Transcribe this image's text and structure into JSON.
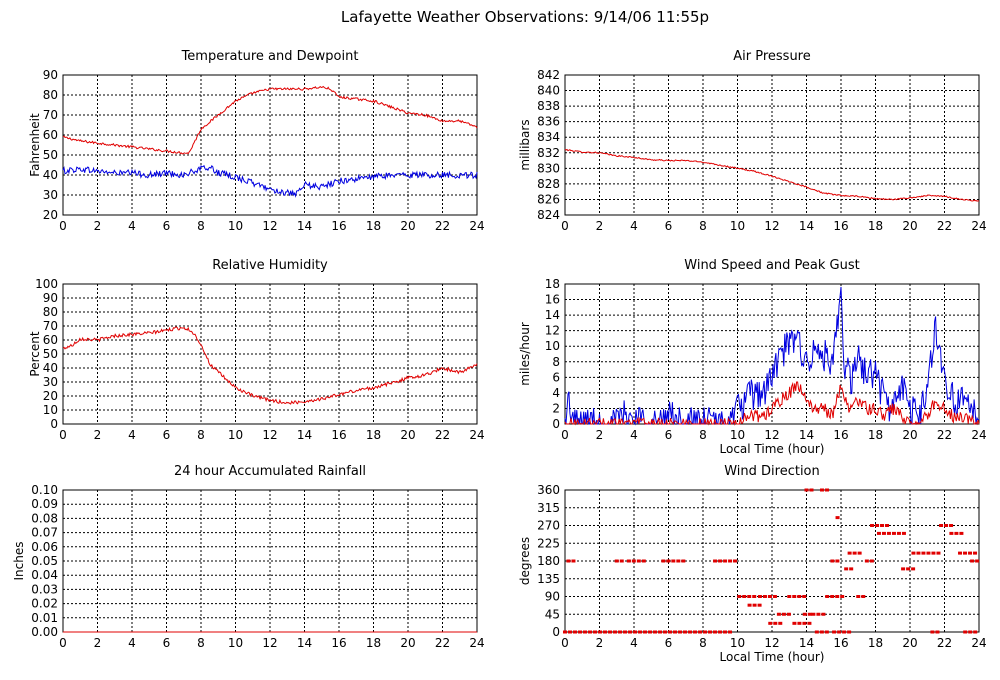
{
  "page": {
    "title": "Lafayette Weather Observations: 9/14/06 11:55p"
  },
  "colors": {
    "red": "#e00000",
    "blue": "#0000e0"
  },
  "chart_data": [
    {
      "id": "temp",
      "type": "line",
      "title": "Temperature and Dewpoint",
      "xlabel": "",
      "ylabel": "Fahrenheit",
      "xlim": [
        0,
        24
      ],
      "ylim": [
        20,
        90
      ],
      "xticks": [
        0,
        2,
        4,
        6,
        8,
        10,
        12,
        14,
        16,
        18,
        20,
        22,
        24
      ],
      "yticks": [
        20,
        30,
        40,
        50,
        60,
        70,
        80,
        90
      ],
      "grid": true,
      "series": [
        {
          "color": "red",
          "noise": 0.6,
          "x": [
            0,
            1,
            2,
            3,
            4,
            5,
            6,
            7,
            7.3,
            8,
            9,
            10,
            11,
            12,
            13,
            14,
            15,
            15.5,
            16,
            17,
            18,
            19,
            20,
            21,
            22,
            23,
            24
          ],
          "y": [
            59,
            57,
            56,
            55,
            54,
            53,
            52,
            51,
            51,
            63,
            70,
            77,
            81,
            83,
            83,
            83,
            84,
            83,
            79,
            78,
            77,
            74,
            71,
            70,
            67,
            67,
            64
          ]
        },
        {
          "color": "blue",
          "noise": 1.6,
          "x": [
            0,
            1,
            2,
            3,
            4,
            5,
            6,
            7,
            8,
            8.5,
            9,
            10,
            11,
            12,
            13,
            13.5,
            14,
            15,
            16,
            17,
            18,
            19,
            20,
            21,
            22,
            23,
            24
          ],
          "y": [
            42,
            43,
            42,
            41,
            41,
            40,
            41,
            40,
            43,
            44,
            41,
            39,
            36,
            33,
            31,
            30,
            35,
            34,
            37,
            38,
            39,
            40,
            40,
            40,
            40,
            40,
            40
          ]
        }
      ]
    },
    {
      "id": "pressure",
      "type": "line",
      "title": "Air Pressure",
      "xlabel": "",
      "ylabel": "millibars",
      "xlim": [
        0,
        24
      ],
      "ylim": [
        824,
        842
      ],
      "xticks": [
        0,
        2,
        4,
        6,
        8,
        10,
        12,
        14,
        16,
        18,
        20,
        22,
        24
      ],
      "yticks": [
        824,
        826,
        828,
        830,
        832,
        834,
        836,
        838,
        840,
        842
      ],
      "grid": true,
      "series": [
        {
          "color": "red",
          "noise": 0.08,
          "x": [
            0,
            1,
            2,
            3,
            4,
            5,
            6,
            7,
            8,
            9,
            10,
            11,
            12,
            13,
            14,
            15,
            16,
            17,
            18,
            19,
            20,
            21,
            22,
            23,
            24
          ],
          "y": [
            832.4,
            832.1,
            832.0,
            831.6,
            831.4,
            831.1,
            831.0,
            831.0,
            830.8,
            830.4,
            830.0,
            829.6,
            829.0,
            828.3,
            827.6,
            826.8,
            826.5,
            826.4,
            826.1,
            826.0,
            826.2,
            826.5,
            826.4,
            826.0,
            825.8
          ]
        }
      ]
    },
    {
      "id": "humidity",
      "type": "line",
      "title": "Relative Humidity",
      "xlabel": "",
      "ylabel": "Percent",
      "xlim": [
        0,
        24
      ],
      "ylim": [
        0,
        100
      ],
      "xticks": [
        0,
        2,
        4,
        6,
        8,
        10,
        12,
        14,
        16,
        18,
        20,
        22,
        24
      ],
      "yticks": [
        0,
        10,
        20,
        30,
        40,
        50,
        60,
        70,
        80,
        90,
        100
      ],
      "grid": true,
      "series": [
        {
          "color": "red",
          "noise": 1.2,
          "x": [
            0,
            0.5,
            1,
            2,
            3,
            4,
            5,
            6,
            7,
            7.5,
            8,
            8.5,
            9,
            10,
            11,
            12,
            13,
            14,
            15,
            16,
            17,
            18,
            19,
            20,
            21,
            22,
            23,
            24
          ],
          "y": [
            54,
            56,
            61,
            60,
            63,
            64,
            65,
            67,
            69,
            66,
            57,
            43,
            37,
            26,
            20,
            17,
            15,
            16,
            18,
            21,
            24,
            26,
            29,
            33,
            35,
            40,
            37,
            42
          ]
        }
      ]
    },
    {
      "id": "wind",
      "type": "line",
      "title": "Wind Speed and Peak Gust",
      "xlabel": "Local Time (hour)",
      "ylabel": "miles/hour",
      "xlim": [
        0,
        24
      ],
      "ylim": [
        0,
        18
      ],
      "xticks": [
        0,
        2,
        4,
        6,
        8,
        10,
        12,
        14,
        16,
        18,
        20,
        22,
        24
      ],
      "yticks": [
        0,
        2,
        4,
        6,
        8,
        10,
        12,
        14,
        16,
        18
      ],
      "grid": true,
      "series": [
        {
          "color": "blue",
          "noise": 2.2,
          "floor": 0,
          "x": [
            0,
            0.2,
            0.4,
            0.6,
            3,
            3.2,
            5.9,
            6.1,
            6.3,
            9.5,
            10,
            10.5,
            11,
            11.5,
            12,
            12.5,
            13,
            13.5,
            14,
            14.5,
            15,
            15.5,
            16,
            16.2,
            16.6,
            17,
            17.5,
            18,
            18.5,
            19,
            19.5,
            20,
            20.5,
            21,
            21.5,
            21.8,
            22.3,
            22.8,
            23.3,
            24
          ],
          "y": [
            0,
            3,
            1,
            0,
            0,
            1,
            0,
            3,
            0,
            0,
            2,
            3,
            4,
            4,
            6,
            9,
            10,
            11,
            8,
            9,
            9,
            7,
            16,
            8,
            5,
            9,
            6,
            7,
            3,
            2,
            5,
            2,
            1,
            4,
            13,
            8,
            4,
            3,
            2,
            1
          ]
        },
        {
          "color": "red",
          "noise": 0.8,
          "floor": 0,
          "x": [
            0,
            9.8,
            10.5,
            11,
            11.5,
            12,
            12.5,
            13,
            13.5,
            14,
            14.5,
            15,
            15.5,
            16,
            16.5,
            17,
            17.5,
            18,
            18.5,
            19,
            19.5,
            20,
            21,
            21.5,
            22,
            22.5,
            23,
            24
          ],
          "y": [
            0,
            0,
            1,
            1,
            1,
            2,
            3,
            4,
            5,
            3,
            2,
            2,
            1,
            5,
            2,
            3,
            2,
            2,
            1,
            2,
            1,
            0,
            1,
            3,
            2,
            1,
            1,
            0
          ]
        }
      ]
    },
    {
      "id": "rain",
      "type": "line",
      "title": "24 hour Accumulated Rainfall",
      "xlabel": "",
      "ylabel": "Inches",
      "xlim": [
        0,
        24
      ],
      "ylim": [
        0,
        0.1
      ],
      "xticks": [
        0,
        2,
        4,
        6,
        8,
        10,
        12,
        14,
        16,
        18,
        20,
        22,
        24
      ],
      "yticks": [
        0.0,
        0.01,
        0.02,
        0.03,
        0.04,
        0.05,
        0.06,
        0.07,
        0.08,
        0.09,
        0.1
      ],
      "ytick_labels": [
        "0.00",
        "0.01",
        "0.02",
        "0.03",
        "0.04",
        "0.05",
        "0.06",
        "0.07",
        "0.08",
        "0.09",
        "0.10"
      ],
      "grid": true,
      "series": [
        {
          "color": "red",
          "noise": 0,
          "x": [
            0,
            24
          ],
          "y": [
            0,
            0
          ]
        }
      ]
    },
    {
      "id": "direction",
      "type": "scatter",
      "title": "Wind Direction",
      "xlabel": "Local Time (hour)",
      "ylabel": "degrees",
      "xlim": [
        0,
        24
      ],
      "ylim": [
        0,
        360
      ],
      "xticks": [
        0,
        2,
        4,
        6,
        8,
        10,
        12,
        14,
        16,
        18,
        20,
        22,
        24
      ],
      "yticks": [
        0,
        45,
        90,
        135,
        180,
        225,
        270,
        315,
        360
      ],
      "grid": true,
      "series": [
        {
          "color": "red",
          "runs": [
            {
              "x0": 0.0,
              "x1": 9.8,
              "y": 0
            },
            {
              "x0": 0.2,
              "x1": 0.5,
              "y": 180
            },
            {
              "x0": 3.0,
              "x1": 3.3,
              "y": 180
            },
            {
              "x0": 3.7,
              "x1": 4.7,
              "y": 180
            },
            {
              "x0": 5.7,
              "x1": 7.0,
              "y": 180
            },
            {
              "x0": 8.7,
              "x1": 10.0,
              "y": 180
            },
            {
              "x0": 10.1,
              "x1": 11.0,
              "y": 90
            },
            {
              "x0": 10.7,
              "x1": 11.4,
              "y": 68
            },
            {
              "x0": 11.3,
              "x1": 12.2,
              "y": 90
            },
            {
              "x0": 11.9,
              "x1": 12.7,
              "y": 22
            },
            {
              "x0": 12.4,
              "x1": 13.0,
              "y": 45
            },
            {
              "x0": 13.0,
              "x1": 14.0,
              "y": 90
            },
            {
              "x0": 13.3,
              "x1": 14.3,
              "y": 22
            },
            {
              "x0": 13.9,
              "x1": 14.3,
              "y": 45
            },
            {
              "x0": 14.0,
              "x1": 14.3,
              "y": 360
            },
            {
              "x0": 14.4,
              "x1": 15.0,
              "y": 45
            },
            {
              "x0": 14.9,
              "x1": 15.2,
              "y": 360
            },
            {
              "x0": 14.6,
              "x1": 15.3,
              "y": 0
            },
            {
              "x0": 15.2,
              "x1": 16.3,
              "y": 90
            },
            {
              "x0": 15.6,
              "x1": 16.5,
              "y": 0
            },
            {
              "x0": 15.5,
              "x1": 15.9,
              "y": 180
            },
            {
              "x0": 15.8,
              "x1": 16.0,
              "y": 290
            },
            {
              "x0": 16.3,
              "x1": 16.8,
              "y": 160
            },
            {
              "x0": 16.5,
              "x1": 17.3,
              "y": 200
            },
            {
              "x0": 17.0,
              "x1": 17.5,
              "y": 90
            },
            {
              "x0": 17.5,
              "x1": 17.9,
              "y": 180
            },
            {
              "x0": 17.8,
              "x1": 18.8,
              "y": 270
            },
            {
              "x0": 18.2,
              "x1": 19.8,
              "y": 250
            },
            {
              "x0": 19.6,
              "x1": 20.3,
              "y": 160
            },
            {
              "x0": 20.2,
              "x1": 21.8,
              "y": 200
            },
            {
              "x0": 21.3,
              "x1": 21.7,
              "y": 0
            },
            {
              "x0": 21.8,
              "x1": 22.5,
              "y": 270
            },
            {
              "x0": 22.4,
              "x1": 23.0,
              "y": 250
            },
            {
              "x0": 22.9,
              "x1": 23.9,
              "y": 200
            },
            {
              "x0": 23.6,
              "x1": 24.0,
              "y": 180
            },
            {
              "x0": 23.2,
              "x1": 24.0,
              "y": 0
            }
          ]
        }
      ]
    }
  ]
}
